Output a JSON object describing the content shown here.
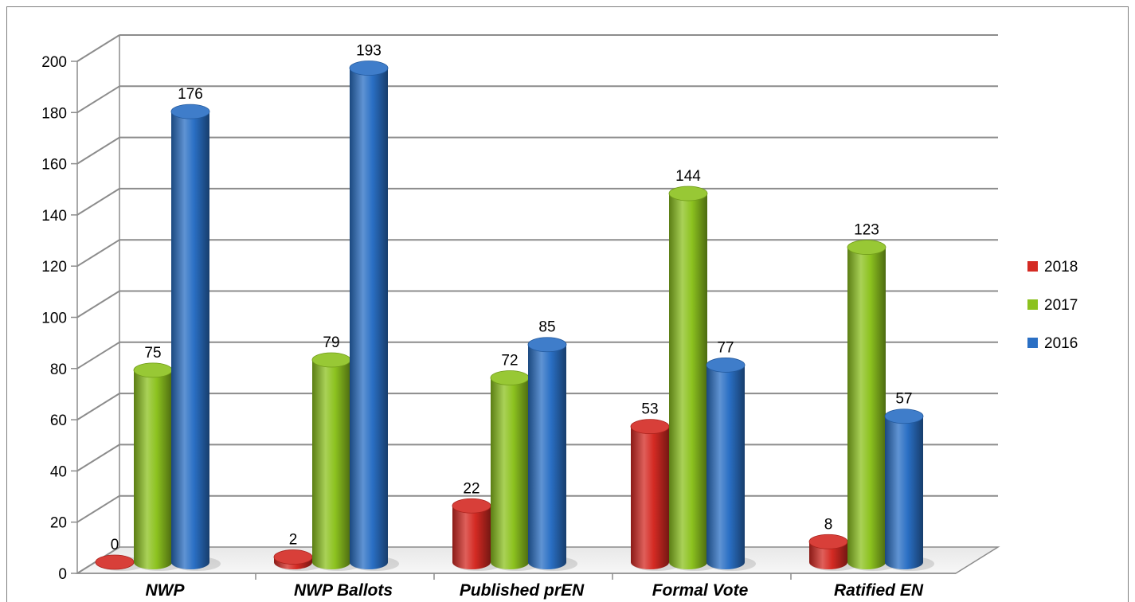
{
  "chart_data": {
    "type": "bar",
    "style": "3d-cylinder",
    "categories": [
      "NWP",
      "NWP Ballots",
      "Published prEN",
      "Formal Vote",
      "Ratified EN"
    ],
    "series": [
      {
        "name": "2018",
        "color": "#d42a23",
        "values": [
          0,
          2,
          22,
          53,
          8
        ]
      },
      {
        "name": "2017",
        "color": "#8cc21f",
        "values": [
          75,
          79,
          72,
          144,
          123
        ]
      },
      {
        "name": "2016",
        "color": "#2a6fc4",
        "values": [
          176,
          193,
          85,
          77,
          57
        ]
      }
    ],
    "yticks": [
      "0",
      "20",
      "40",
      "60",
      "80",
      "100",
      "120",
      "140",
      "160",
      "180",
      "200"
    ],
    "ylim": [
      0,
      200
    ],
    "grid": true,
    "legend_position": "right"
  }
}
